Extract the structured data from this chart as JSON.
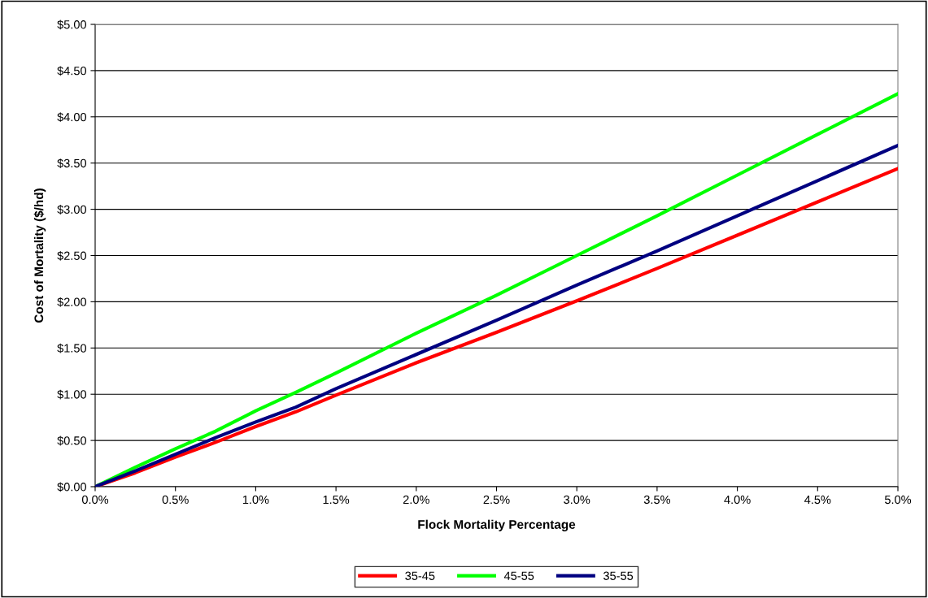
{
  "chart_data": {
    "type": "line",
    "xlabel": "Flock Mortality Percentage",
    "ylabel": "Cost of Mortality ($/hd)",
    "x": [
      0,
      0.25,
      0.5,
      0.75,
      1.0,
      1.25,
      1.5,
      2.0,
      2.5,
      3.0,
      3.5,
      4.0,
      4.5,
      5.0
    ],
    "series": [
      {
        "name": "35-45",
        "color": "#ff0000",
        "values": [
          0,
          0.15,
          0.32,
          0.48,
          0.65,
          0.81,
          0.99,
          1.34,
          1.67,
          2.01,
          2.36,
          2.72,
          3.08,
          3.44
        ]
      },
      {
        "name": "45-55",
        "color": "#00ff00",
        "values": [
          0,
          0.21,
          0.41,
          0.6,
          0.82,
          1.02,
          1.23,
          1.66,
          2.07,
          2.5,
          2.93,
          3.37,
          3.81,
          4.25
        ]
      },
      {
        "name": "35-55",
        "color": "#000080",
        "values": [
          0,
          0.17,
          0.35,
          0.53,
          0.7,
          0.86,
          1.06,
          1.43,
          1.8,
          2.18,
          2.55,
          2.93,
          3.31,
          3.69
        ]
      }
    ],
    "xlim": [
      0,
      5
    ],
    "xticks": [
      {
        "value": 0,
        "label": "0.0%"
      },
      {
        "value": 0.5,
        "label": "0.5%"
      },
      {
        "value": 1.0,
        "label": "1.0%"
      },
      {
        "value": 1.5,
        "label": "1.5%"
      },
      {
        "value": 2.0,
        "label": "2.0%"
      },
      {
        "value": 2.5,
        "label": "2.5%"
      },
      {
        "value": 3.0,
        "label": "3.0%"
      },
      {
        "value": 3.5,
        "label": "3.5%"
      },
      {
        "value": 4.0,
        "label": "4.0%"
      },
      {
        "value": 4.5,
        "label": "4.5%"
      },
      {
        "value": 5.0,
        "label": "5.0%"
      }
    ],
    "ylim": [
      0,
      5
    ],
    "yticks": [
      {
        "value": 0,
        "label": "$0.00"
      },
      {
        "value": 0.5,
        "label": "$0.50"
      },
      {
        "value": 1.0,
        "label": "$1.00"
      },
      {
        "value": 1.5,
        "label": "$1.50"
      },
      {
        "value": 2.0,
        "label": "$2.00"
      },
      {
        "value": 2.5,
        "label": "$2.50"
      },
      {
        "value": 3.0,
        "label": "$3.00"
      },
      {
        "value": 3.5,
        "label": "$3.50"
      },
      {
        "value": 4.0,
        "label": "$4.00"
      },
      {
        "value": 4.5,
        "label": "$4.50"
      },
      {
        "value": 5.0,
        "label": "$5.00"
      }
    ],
    "grid": "y",
    "legend": "bottom",
    "marker": "none",
    "line_style": "solid"
  }
}
